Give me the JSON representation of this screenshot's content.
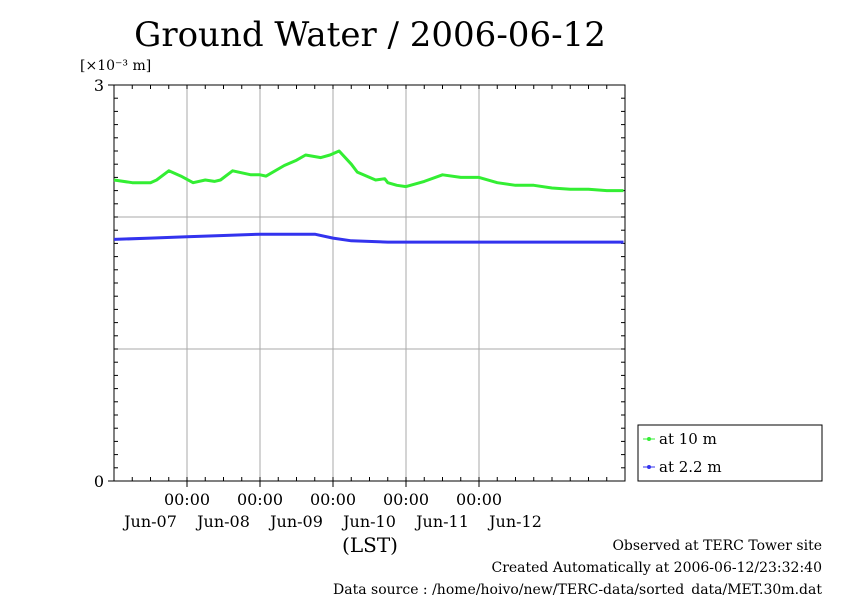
{
  "chart_data": {
    "type": "line",
    "title": "Ground Water / 2006-06-12",
    "unit_label": "[×10⁻³ m]",
    "xlabel": "(LST)",
    "ylim": [
      0,
      3
    ],
    "y_ticks": [
      {
        "value": 0,
        "label": "0"
      },
      {
        "value": 3,
        "label": "3"
      }
    ],
    "y_gridlines": [
      1,
      2
    ],
    "xlim": [
      "2006-06-06T00:00",
      "2006-06-13T00:00"
    ],
    "x_ticks": [
      {
        "time": "2006-06-07T00:00",
        "time_label": "00:00"
      },
      {
        "time": "2006-06-08T00:00",
        "time_label": "00:00"
      },
      {
        "time": "2006-06-09T00:00",
        "time_label": "00:00"
      },
      {
        "time": "2006-06-10T00:00",
        "time_label": "00:00"
      },
      {
        "time": "2006-06-11T00:00",
        "time_label": "00:00"
      }
    ],
    "x_date_labels": [
      {
        "time": "2006-06-06T12:00",
        "label": "Jun-07"
      },
      {
        "time": "2006-06-07T12:00",
        "label": "Jun-08"
      },
      {
        "time": "2006-06-08T12:00",
        "label": "Jun-09"
      },
      {
        "time": "2006-06-09T12:00",
        "label": "Jun-10"
      },
      {
        "time": "2006-06-10T12:00",
        "label": "Jun-11"
      },
      {
        "time": "2006-06-11T12:00",
        "label": "Jun-12"
      }
    ],
    "grid": true,
    "legend_position": "right-bottom",
    "series": [
      {
        "name": "at 10 m",
        "color": "#33ee33",
        "x": [
          "2006-06-06T00:00",
          "2006-06-06T06:00",
          "2006-06-06T12:00",
          "2006-06-06T14:00",
          "2006-06-06T18:00",
          "2006-06-06T22:00",
          "2006-06-07T02:00",
          "2006-06-07T06:00",
          "2006-06-07T09:00",
          "2006-06-07T11:00",
          "2006-06-07T15:00",
          "2006-06-07T21:00",
          "2006-06-08T00:00",
          "2006-06-08T02:00",
          "2006-06-08T08:00",
          "2006-06-08T12:00",
          "2006-06-08T15:00",
          "2006-06-08T20:00",
          "2006-06-08T23:00",
          "2006-06-09T02:00",
          "2006-06-09T06:00",
          "2006-06-09T08:00",
          "2006-06-09T14:00",
          "2006-06-09T17:00",
          "2006-06-09T18:00",
          "2006-06-09T21:00",
          "2006-06-10T00:00",
          "2006-06-10T06:00",
          "2006-06-10T12:00",
          "2006-06-10T18:00",
          "2006-06-11T00:00",
          "2006-06-11T06:00",
          "2006-06-11T12:00",
          "2006-06-11T18:00",
          "2006-06-12T00:00",
          "2006-06-12T06:00",
          "2006-06-12T12:00",
          "2006-06-12T18:00",
          "2006-06-12T23:30"
        ],
        "values": [
          2.28,
          2.26,
          2.26,
          2.28,
          2.35,
          2.31,
          2.26,
          2.28,
          2.27,
          2.28,
          2.35,
          2.32,
          2.32,
          2.31,
          2.39,
          2.43,
          2.47,
          2.45,
          2.47,
          2.5,
          2.4,
          2.34,
          2.28,
          2.29,
          2.26,
          2.24,
          2.23,
          2.27,
          2.32,
          2.3,
          2.3,
          2.26,
          2.24,
          2.24,
          2.22,
          2.21,
          2.21,
          2.2,
          2.2
        ]
      },
      {
        "name": "at 2.2 m",
        "color": "#3333ee",
        "x": [
          "2006-06-06T00:00",
          "2006-06-06T12:00",
          "2006-06-07T00:00",
          "2006-06-07T12:00",
          "2006-06-08T00:00",
          "2006-06-08T12:00",
          "2006-06-08T18:00",
          "2006-06-09T00:00",
          "2006-06-09T06:00",
          "2006-06-09T18:00",
          "2006-06-10T06:00",
          "2006-06-10T18:00",
          "2006-06-11T06:00",
          "2006-06-11T18:00",
          "2006-06-12T06:00",
          "2006-06-12T23:30"
        ],
        "values": [
          1.83,
          1.84,
          1.85,
          1.86,
          1.87,
          1.87,
          1.87,
          1.84,
          1.82,
          1.81,
          1.81,
          1.81,
          1.81,
          1.81,
          1.81,
          1.81
        ]
      }
    ]
  },
  "footer": {
    "line1": "Observed at TERC Tower site",
    "line2": "Created Automatically at 2006-06-12/23:32:40",
    "line3": "Data source : /home/hoivo/new/TERC-data/sorted_data/MET.30m.dat"
  }
}
